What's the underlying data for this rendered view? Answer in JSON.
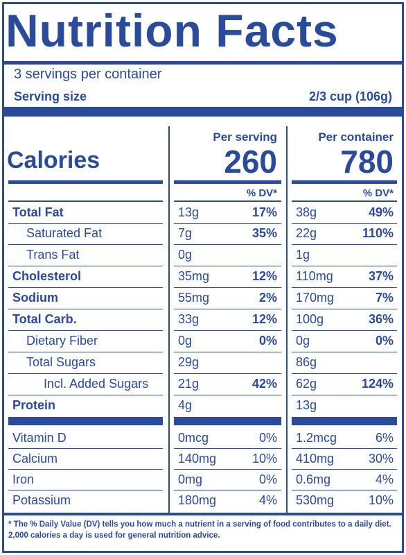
{
  "title": "Nutrition Facts",
  "servings_per_container": "3 servings per container",
  "serving_size_label": "Serving size",
  "serving_size_value": "2/3 cup (106g)",
  "calories_label": "Calories",
  "per_serving_label": "Per serving",
  "per_container_label": "Per container",
  "calories_per_serving": "260",
  "calories_per_container": "780",
  "dv_header": "% DV*",
  "nutrients": [
    {
      "name": "Total Fat",
      "bold": true,
      "serving_amount": "13g",
      "serving_dv": "17%",
      "container_amount": "38g",
      "container_dv": "49%"
    },
    {
      "name": "Saturated Fat",
      "bold": false,
      "serving_amount": "7g",
      "serving_dv": "35%",
      "container_amount": "22g",
      "container_dv": "110%"
    },
    {
      "name": "Trans Fat",
      "bold": false,
      "serving_amount": "0g",
      "serving_dv": "",
      "container_amount": "1g",
      "container_dv": ""
    },
    {
      "name": "Cholesterol",
      "bold": true,
      "serving_amount": "35mg",
      "serving_dv": "12%",
      "container_amount": "110mg",
      "container_dv": "37%"
    },
    {
      "name": "Sodium",
      "bold": true,
      "serving_amount": "55mg",
      "serving_dv": "2%",
      "container_amount": "170mg",
      "container_dv": "7%"
    },
    {
      "name": "Total Carb.",
      "bold": true,
      "serving_amount": "33g",
      "serving_dv": "12%",
      "container_amount": "100g",
      "container_dv": "36%"
    },
    {
      "name": "Dietary Fiber",
      "bold": false,
      "serving_amount": "0g",
      "serving_dv": "0%",
      "container_amount": "0g",
      "container_dv": "0%"
    },
    {
      "name": "Total Sugars",
      "bold": false,
      "serving_amount": "29g",
      "serving_dv": "",
      "container_amount": "86g",
      "container_dv": ""
    },
    {
      "name": "Incl. Added Sugars",
      "bold": false,
      "serving_amount": "21g",
      "serving_dv": "42%",
      "container_amount": "62g",
      "container_dv": "124%"
    },
    {
      "name": "Protein",
      "bold": true,
      "serving_amount": "4g",
      "serving_dv": "",
      "container_amount": "13g",
      "container_dv": ""
    }
  ],
  "vitamins": [
    {
      "name": "Vitamin D",
      "serving_amount": "0mcg",
      "serving_dv": "0%",
      "container_amount": "1.2mcg",
      "container_dv": "6%"
    },
    {
      "name": "Calcium",
      "serving_amount": "140mg",
      "serving_dv": "10%",
      "container_amount": "410mg",
      "container_dv": "30%"
    },
    {
      "name": "Iron",
      "serving_amount": "0mg",
      "serving_dv": "0%",
      "container_amount": "0.6mg",
      "container_dv": "4%"
    },
    {
      "name": "Potassium",
      "serving_amount": "180mg",
      "serving_dv": "4%",
      "container_amount": "530mg",
      "container_dv": "10%"
    }
  ],
  "footnote": "* The % Daily Value (DV) tells you how much a nutrient in a serving of food contributes to a daily diet. 2,000 calories a day is used for general nutrition advice.",
  "colors": {
    "ink": "#2a4a9a",
    "background": "#ffffff"
  }
}
